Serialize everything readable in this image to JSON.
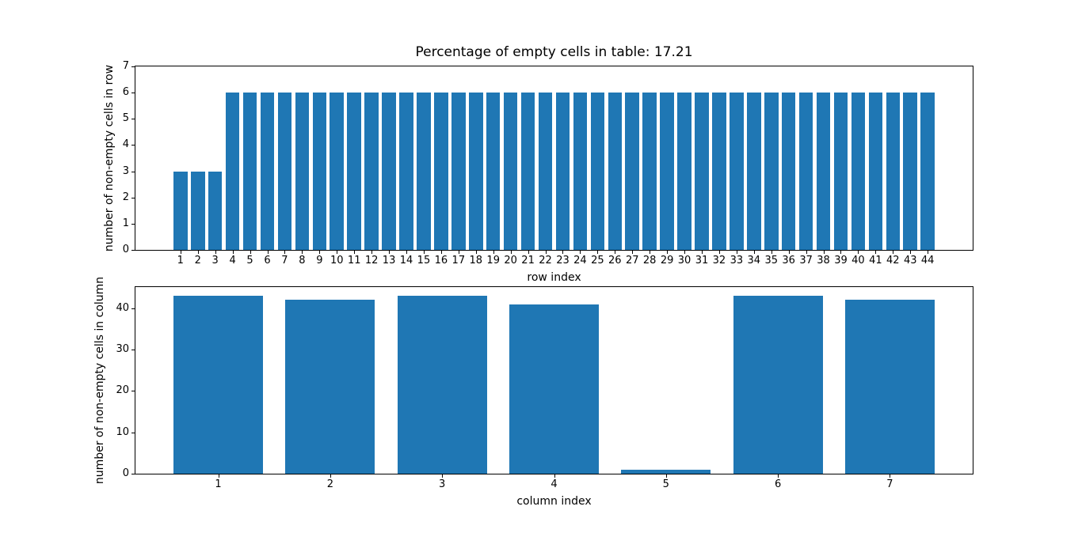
{
  "figure": {
    "background": "#ffffff",
    "text_color": "#000000",
    "spine_color": "#000000"
  },
  "chart_data": [
    {
      "type": "bar",
      "title": "Percentage of empty cells in table: 17.21",
      "xlabel": "row index",
      "ylabel": "number of non-empty cells in row",
      "bar_color": "#1f77b4",
      "bar_width": 0.8,
      "categories": [
        1,
        2,
        3,
        4,
        5,
        6,
        7,
        8,
        9,
        10,
        11,
        12,
        13,
        14,
        15,
        16,
        17,
        18,
        19,
        20,
        21,
        22,
        23,
        24,
        25,
        26,
        27,
        28,
        29,
        30,
        31,
        32,
        33,
        34,
        35,
        36,
        37,
        38,
        39,
        40,
        41,
        42,
        43,
        44
      ],
      "values": [
        3,
        3,
        3,
        6,
        6,
        6,
        6,
        6,
        6,
        6,
        6,
        6,
        6,
        6,
        6,
        6,
        6,
        6,
        6,
        6,
        6,
        6,
        6,
        6,
        6,
        6,
        6,
        6,
        6,
        6,
        6,
        6,
        6,
        6,
        6,
        6,
        6,
        6,
        6,
        6,
        6,
        6,
        6,
        6
      ],
      "xlim": [
        -1.59,
        46.59
      ],
      "ylim": [
        0,
        7
      ],
      "yticks": [
        0,
        1,
        2,
        3,
        4,
        5,
        6,
        7
      ],
      "grid": false,
      "legend": null
    },
    {
      "type": "bar",
      "title": "",
      "xlabel": "column index",
      "ylabel": "number of non-empty cells in column",
      "bar_color": "#1f77b4",
      "bar_width": 0.8,
      "categories": [
        1,
        2,
        3,
        4,
        5,
        6,
        7
      ],
      "values": [
        43,
        42,
        43,
        41,
        1,
        43,
        42
      ],
      "xlim": [
        0.26,
        7.74
      ],
      "ylim": [
        0,
        45.15
      ],
      "yticks": [
        0,
        10,
        20,
        30,
        40
      ],
      "grid": false,
      "legend": null
    }
  ]
}
